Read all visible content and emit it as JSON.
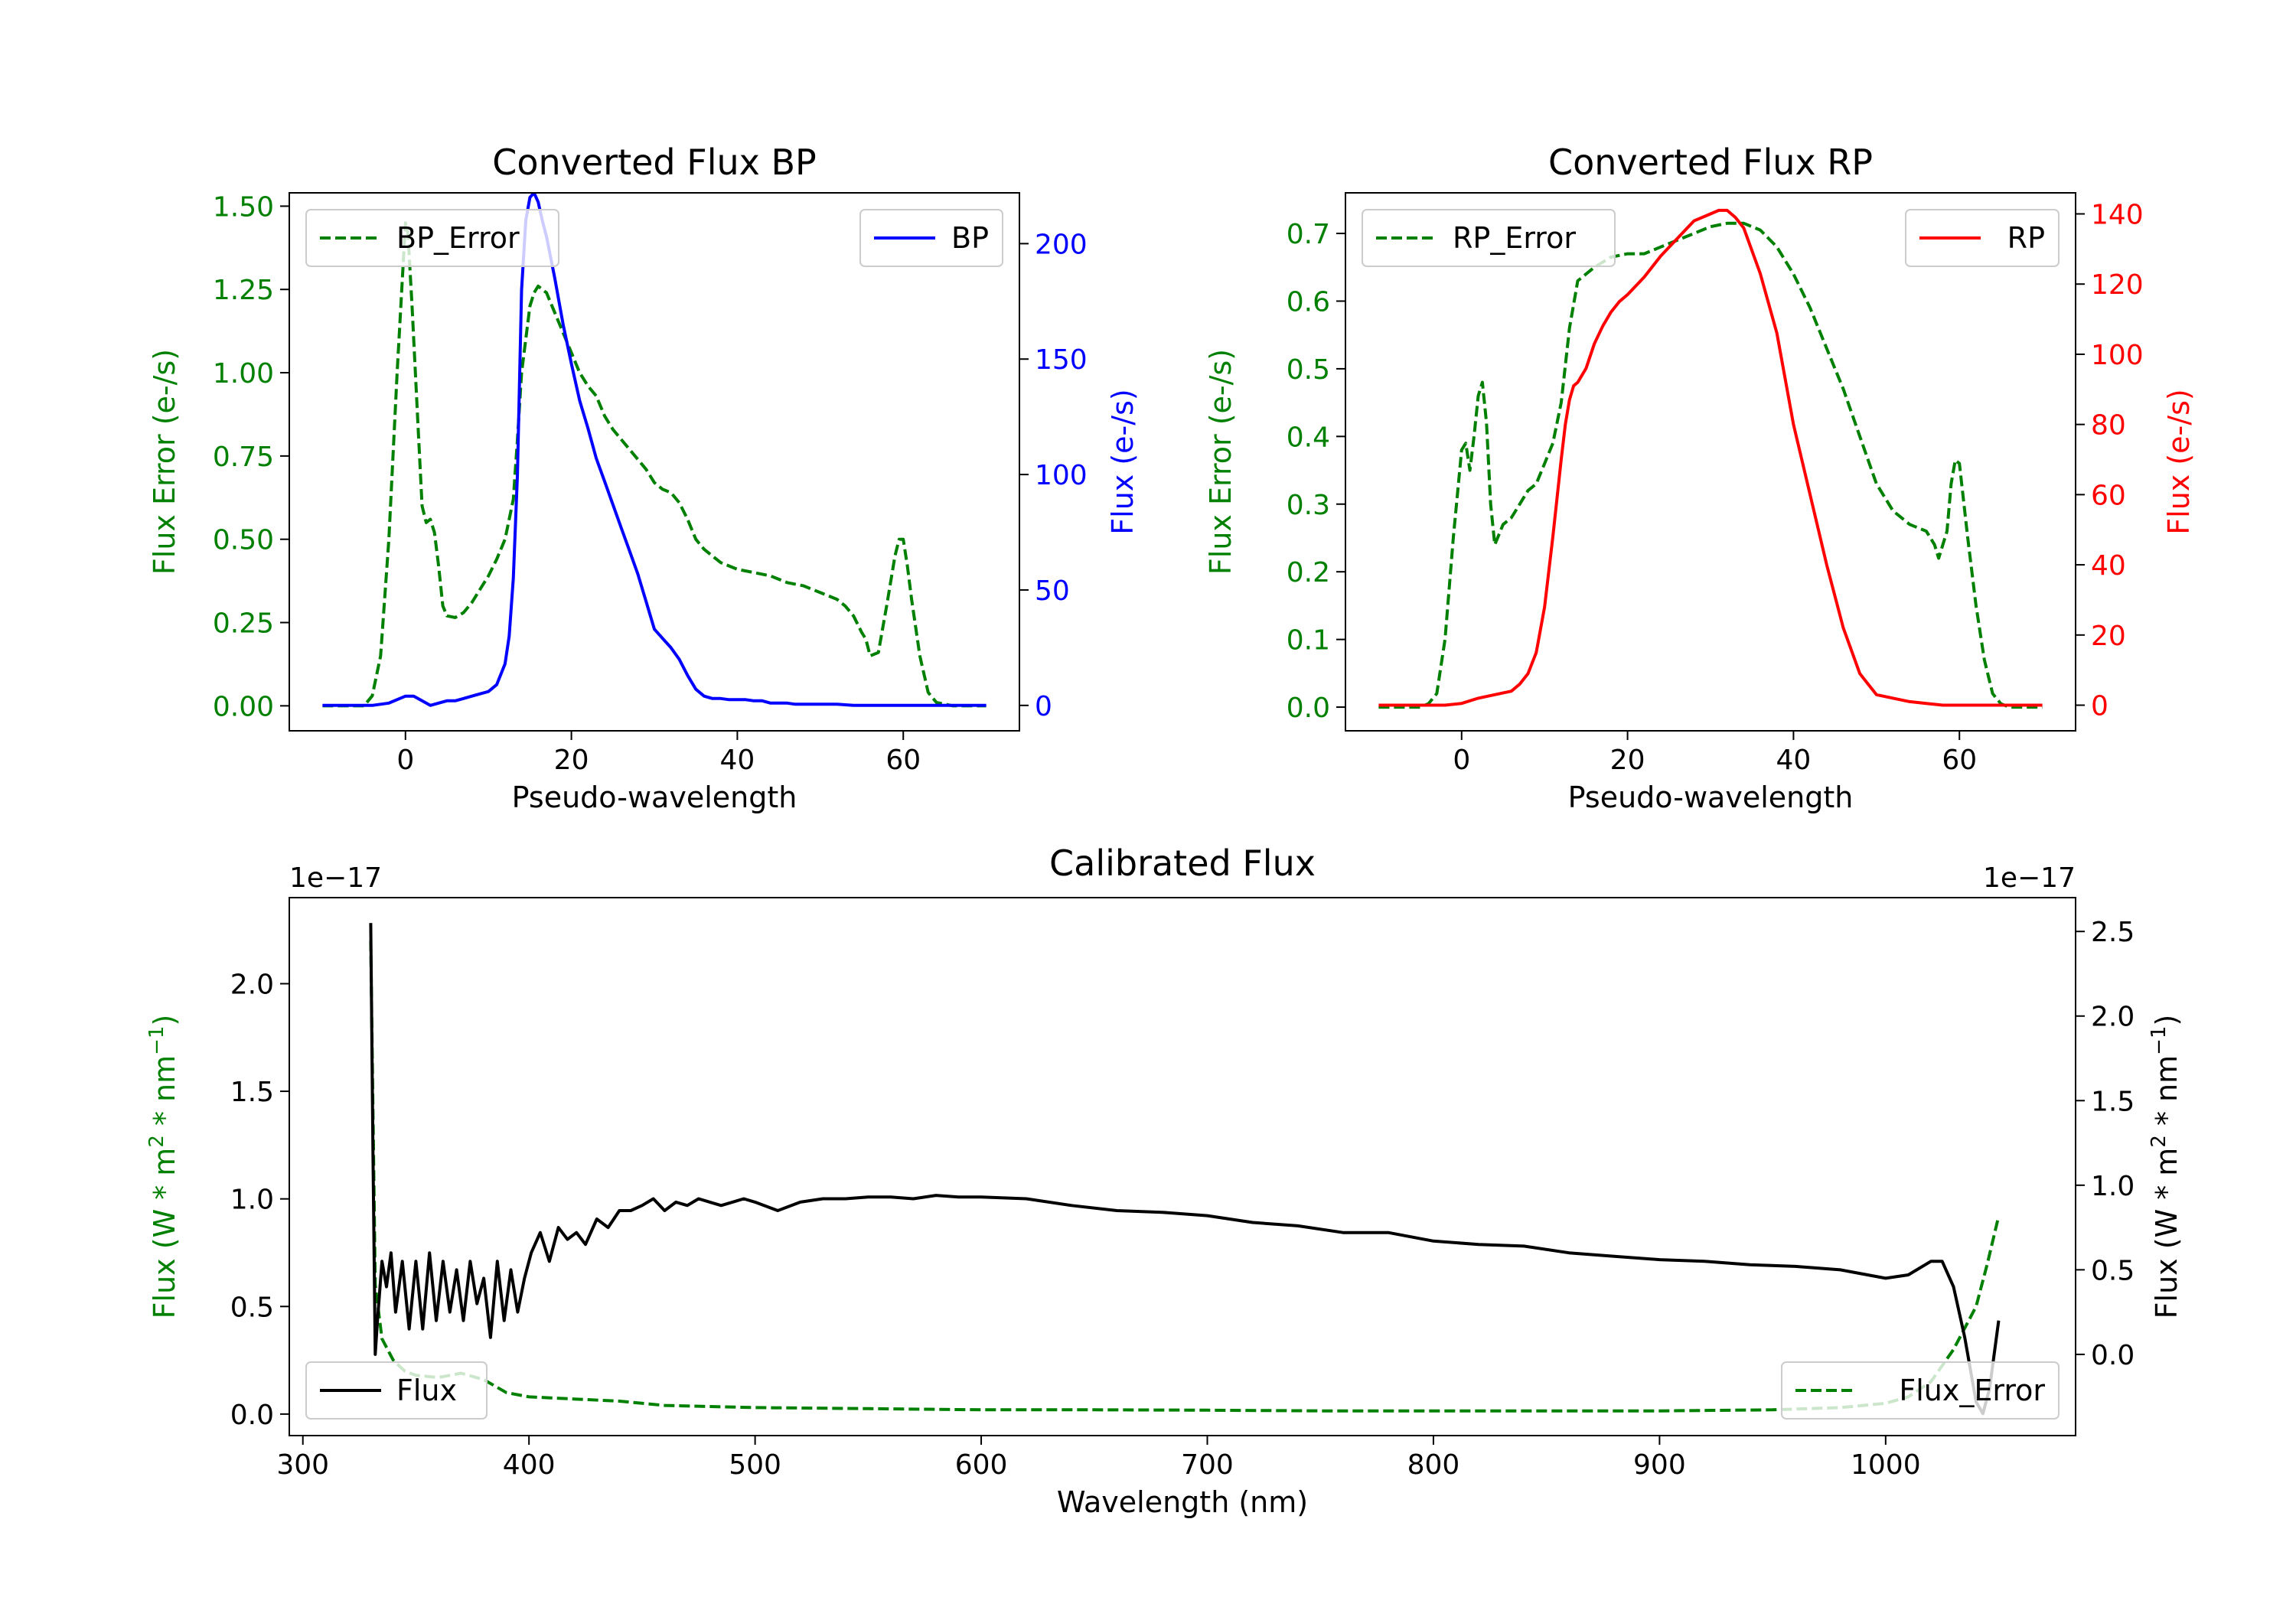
{
  "colors": {
    "green": "#008000",
    "blue": "#0000ff",
    "red": "#ff0000",
    "black": "#000000"
  },
  "chart_data": [
    {
      "type": "line",
      "title": "Converted Flux BP",
      "xlabel": "Pseudo-wavelength",
      "ylabel_left": "Flux Error (e-/s)",
      "ylabel_right": "Flux (e-/s)",
      "xlim": [
        -14,
        74
      ],
      "ylim_left": [
        -0.075,
        1.54
      ],
      "ylim_right": [
        -11,
        222
      ],
      "xticks": [
        0,
        20,
        40,
        60
      ],
      "xtick_labels": [
        "0",
        "20",
        "40",
        "60"
      ],
      "yticks_left": [
        0,
        0.25,
        0.5,
        0.75,
        1.0,
        1.25,
        1.5
      ],
      "ytick_labels_left": [
        "0.00",
        "0.25",
        "0.50",
        "0.75",
        "1.00",
        "1.25",
        "1.50"
      ],
      "yticks_right": [
        0,
        50,
        100,
        150,
        200
      ],
      "ytick_labels_right": [
        "0",
        "50",
        "100",
        "150",
        "200"
      ],
      "legend_left": "BP_Error",
      "legend_right": "BP",
      "series_left": {
        "name": "BP_Error",
        "color": "#008000",
        "style": "dashed",
        "x": [
          -10,
          -5,
          -4,
          -3,
          -2,
          -1,
          0,
          0.3,
          0.8,
          1.5,
          2,
          2.5,
          3,
          3.5,
          4,
          4.5,
          5,
          6,
          7,
          8,
          9,
          10,
          11,
          12,
          13,
          13.5,
          14,
          15,
          15.5,
          16,
          17,
          18,
          19,
          20,
          21,
          22,
          23,
          24,
          25,
          26,
          27,
          28,
          29,
          30,
          31,
          32,
          33,
          34,
          35,
          36,
          37,
          38,
          40,
          42,
          44,
          46,
          48,
          50,
          52,
          53,
          54,
          55,
          55.5,
          56,
          57,
          58,
          59,
          59.5,
          60,
          60.5,
          61,
          62,
          63,
          64,
          66,
          70
        ],
        "values": [
          0,
          0,
          0.03,
          0.15,
          0.5,
          1.0,
          1.45,
          1.42,
          1.2,
          0.85,
          0.6,
          0.55,
          0.56,
          0.52,
          0.42,
          0.3,
          0.27,
          0.265,
          0.28,
          0.31,
          0.35,
          0.39,
          0.44,
          0.5,
          0.62,
          0.8,
          1.0,
          1.2,
          1.24,
          1.26,
          1.24,
          1.18,
          1.12,
          1.06,
          1.0,
          0.96,
          0.93,
          0.87,
          0.83,
          0.8,
          0.77,
          0.74,
          0.71,
          0.67,
          0.65,
          0.64,
          0.61,
          0.56,
          0.5,
          0.47,
          0.45,
          0.43,
          0.41,
          0.4,
          0.39,
          0.37,
          0.36,
          0.34,
          0.32,
          0.3,
          0.27,
          0.22,
          0.2,
          0.15,
          0.16,
          0.3,
          0.45,
          0.5,
          0.5,
          0.42,
          0.32,
          0.15,
          0.04,
          0.01,
          0,
          0
        ]
      },
      "series_right": {
        "name": "BP",
        "color": "#0000ff",
        "style": "solid",
        "x": [
          -10,
          -6,
          -4,
          -2,
          0,
          1,
          2,
          2.5,
          3,
          4,
          5,
          6,
          7,
          8,
          9,
          10,
          11,
          12,
          12.5,
          13,
          13.5,
          14,
          14.5,
          15,
          15.5,
          16,
          16.5,
          17,
          18,
          19,
          20,
          21,
          22,
          23,
          24,
          25,
          26,
          27,
          28,
          29,
          30,
          31,
          32,
          33,
          34,
          35,
          36,
          37,
          38,
          39,
          40,
          41,
          42,
          43,
          44,
          45,
          46,
          47,
          48,
          50,
          52,
          54,
          56,
          58,
          60,
          62,
          64,
          66,
          68,
          70
        ],
        "values": [
          0,
          0,
          0,
          1,
          4,
          4,
          2,
          1,
          0,
          1,
          2,
          2,
          3,
          4,
          5,
          6,
          9,
          18,
          30,
          55,
          100,
          180,
          210,
          220,
          222,
          218,
          210,
          203,
          185,
          165,
          148,
          132,
          120,
          107,
          97,
          87,
          77,
          67,
          57,
          45,
          33,
          29,
          25,
          20,
          13,
          7,
          4,
          3,
          3,
          2.5,
          2.5,
          2.5,
          2,
          2,
          1,
          1,
          1,
          0.5,
          0.5,
          0.5,
          0.5,
          0,
          0,
          0,
          0,
          0,
          0,
          0,
          0,
          0
        ]
      }
    },
    {
      "type": "line",
      "title": "Converted Flux RP",
      "xlabel": "Pseudo-wavelength",
      "ylabel_left": "Flux Error (e-/s)",
      "ylabel_right": "Flux (e-/s)",
      "xlim": [
        -14,
        74
      ],
      "ylim_left": [
        -0.035,
        0.76
      ],
      "ylim_right": [
        -7.3,
        146
      ],
      "xticks": [
        0,
        20,
        40,
        60
      ],
      "xtick_labels": [
        "0",
        "20",
        "40",
        "60"
      ],
      "yticks_left": [
        0,
        0.1,
        0.2,
        0.3,
        0.4,
        0.5,
        0.6,
        0.7
      ],
      "ytick_labels_left": [
        "0.0",
        "0.1",
        "0.2",
        "0.3",
        "0.4",
        "0.5",
        "0.6",
        "0.7"
      ],
      "yticks_right": [
        0,
        20,
        40,
        60,
        80,
        100,
        120,
        140
      ],
      "ytick_labels_right": [
        "0",
        "20",
        "40",
        "60",
        "80",
        "100",
        "120",
        "140"
      ],
      "legend_left": "RP_Error",
      "legend_right": "RP",
      "series_left": {
        "name": "RP_Error",
        "color": "#008000",
        "style": "dashed",
        "x": [
          -10,
          -5,
          -4,
          -3,
          -2,
          -1,
          0,
          0.5,
          1,
          1.5,
          2,
          2.5,
          3,
          3.5,
          4,
          5,
          6,
          7,
          8,
          9,
          10,
          11,
          12,
          13,
          14,
          15,
          16,
          18,
          20,
          22,
          24,
          26,
          28,
          30,
          32,
          34,
          36,
          38,
          40,
          42,
          44,
          46,
          48,
          50,
          52,
          54,
          56,
          57,
          57.5,
          58.5,
          59,
          59.5,
          60,
          61,
          62,
          63,
          64,
          65,
          66,
          70
        ],
        "values": [
          0,
          0,
          0.005,
          0.02,
          0.1,
          0.25,
          0.38,
          0.39,
          0.35,
          0.4,
          0.46,
          0.48,
          0.42,
          0.3,
          0.24,
          0.27,
          0.28,
          0.3,
          0.32,
          0.33,
          0.36,
          0.39,
          0.45,
          0.56,
          0.63,
          0.64,
          0.65,
          0.665,
          0.67,
          0.67,
          0.68,
          0.69,
          0.7,
          0.71,
          0.715,
          0.715,
          0.705,
          0.68,
          0.64,
          0.59,
          0.53,
          0.47,
          0.4,
          0.33,
          0.29,
          0.27,
          0.26,
          0.24,
          0.22,
          0.26,
          0.33,
          0.365,
          0.36,
          0.25,
          0.15,
          0.07,
          0.02,
          0.005,
          0,
          0
        ]
      },
      "series_right": {
        "name": "RP",
        "color": "#ff0000",
        "style": "solid",
        "x": [
          -10,
          -4,
          -2,
          0,
          2,
          4,
          6,
          7,
          8,
          9,
          10,
          11,
          12,
          12.5,
          13,
          13.5,
          14,
          15,
          16,
          17,
          18,
          19,
          20,
          22,
          24,
          26,
          28,
          30,
          31,
          32,
          33,
          34,
          36,
          38,
          40,
          42,
          44,
          46,
          48,
          50,
          52,
          54,
          56,
          58,
          60,
          62,
          66,
          70
        ],
        "values": [
          0,
          0,
          0,
          0.5,
          2,
          3,
          4,
          6,
          9,
          15,
          28,
          48,
          70,
          80,
          87,
          91,
          92,
          96,
          103,
          108,
          112,
          115,
          117,
          122,
          128,
          133,
          138,
          140,
          141,
          141,
          139,
          136,
          123,
          106,
          80,
          60,
          40,
          22,
          9,
          3,
          2,
          1,
          0.5,
          0,
          0,
          0,
          0,
          0
        ]
      }
    },
    {
      "type": "line",
      "title": "Calibrated Flux",
      "xlabel": "Wavelength (nm)",
      "ylabel_left": "Flux (W * m",
      "ylabel_right": "Flux (W * m",
      "ylabel_sup1": "2",
      "ylabel_mid": " * nm",
      "ylabel_sup2": "−1",
      "ylabel_end": ")",
      "offset_left": "1e−17",
      "offset_right": "1e−17",
      "xlim": [
        294,
        1084
      ],
      "ylim_left": [
        -0.1,
        2.4
      ],
      "ylim_right": [
        -0.48,
        2.7
      ],
      "xticks": [
        300,
        400,
        500,
        600,
        700,
        800,
        900,
        1000
      ],
      "xtick_labels": [
        "300",
        "400",
        "500",
        "600",
        "700",
        "800",
        "900",
        "1000"
      ],
      "yticks_left": [
        0,
        0.5,
        1.0,
        1.5,
        2.0
      ],
      "ytick_labels_left": [
        "0.0",
        "0.5",
        "1.0",
        "1.5",
        "2.0"
      ],
      "yticks_right": [
        0,
        0.5,
        1.0,
        1.5,
        2.0,
        2.5
      ],
      "ytick_labels_right": [
        "0.0",
        "0.5",
        "1.0",
        "1.5",
        "2.0",
        "2.5"
      ],
      "legend_left": "Flux",
      "legend_right": "Flux_Error",
      "series_left": {
        "name": "Flux_Error",
        "color": "#008000",
        "style": "dashed",
        "x": [
          330,
          332,
          335,
          340,
          345,
          350,
          360,
          370,
          380,
          390,
          400,
          420,
          440,
          460,
          500,
          550,
          600,
          650,
          700,
          750,
          800,
          850,
          900,
          950,
          980,
          1000,
          1010,
          1020,
          1030,
          1040,
          1045,
          1050
        ],
        "values": [
          2.2,
          0.6,
          0.35,
          0.25,
          0.2,
          0.18,
          0.17,
          0.19,
          0.16,
          0.1,
          0.08,
          0.07,
          0.06,
          0.04,
          0.03,
          0.025,
          0.02,
          0.02,
          0.018,
          0.015,
          0.015,
          0.015,
          0.015,
          0.02,
          0.03,
          0.05,
          0.08,
          0.15,
          0.3,
          0.5,
          0.7,
          0.92
        ]
      },
      "series_right": {
        "name": "Flux",
        "color": "#000000",
        "style": "solid",
        "x": [
          330,
          331,
          332,
          333,
          335,
          337,
          339,
          341,
          344,
          347,
          350,
          353,
          356,
          359,
          362,
          365,
          368,
          371,
          374,
          377,
          380,
          383,
          386,
          389,
          392,
          395,
          398,
          401,
          405,
          409,
          413,
          417,
          421,
          425,
          430,
          435,
          440,
          445,
          450,
          455,
          460,
          465,
          470,
          475,
          480,
          485,
          490,
          495,
          500,
          510,
          520,
          530,
          540,
          550,
          560,
          570,
          580,
          590,
          600,
          620,
          640,
          660,
          680,
          700,
          720,
          740,
          760,
          780,
          800,
          820,
          840,
          860,
          880,
          900,
          920,
          940,
          960,
          980,
          1000,
          1010,
          1020,
          1025,
          1030,
          1035,
          1040,
          1043,
          1046,
          1050
        ],
        "values": [
          2.55,
          1.2,
          0.0,
          0.2,
          0.55,
          0.4,
          0.6,
          0.25,
          0.55,
          0.15,
          0.55,
          0.15,
          0.6,
          0.2,
          0.55,
          0.25,
          0.5,
          0.2,
          0.55,
          0.3,
          0.45,
          0.1,
          0.55,
          0.2,
          0.5,
          0.25,
          0.45,
          0.6,
          0.72,
          0.55,
          0.75,
          0.68,
          0.72,
          0.65,
          0.8,
          0.75,
          0.85,
          0.85,
          0.88,
          0.92,
          0.85,
          0.9,
          0.88,
          0.92,
          0.9,
          0.88,
          0.9,
          0.92,
          0.9,
          0.85,
          0.9,
          0.92,
          0.92,
          0.93,
          0.93,
          0.92,
          0.94,
          0.93,
          0.93,
          0.92,
          0.88,
          0.85,
          0.84,
          0.82,
          0.78,
          0.76,
          0.72,
          0.72,
          0.67,
          0.65,
          0.64,
          0.6,
          0.58,
          0.56,
          0.55,
          0.53,
          0.52,
          0.5,
          0.45,
          0.47,
          0.55,
          0.55,
          0.4,
          0.1,
          -0.28,
          -0.35,
          -0.2,
          0.2
        ]
      }
    }
  ]
}
